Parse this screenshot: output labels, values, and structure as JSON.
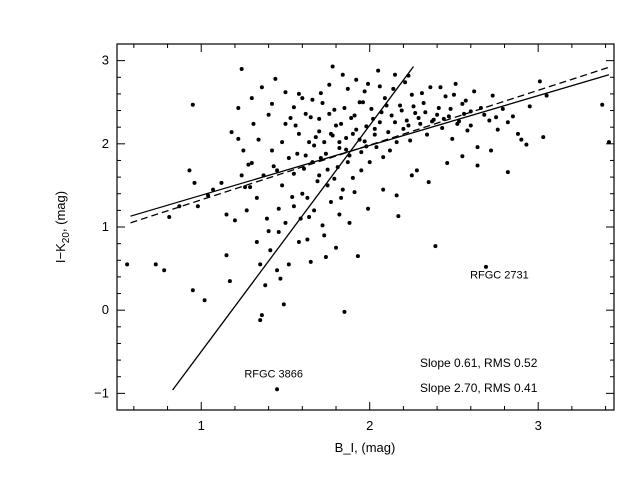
{
  "chart_data": {
    "type": "scatter",
    "title": "",
    "xlabel": "B_I, (mag)",
    "ylabel_main": "I−K",
    "ylabel_sub": "20",
    "ylabel_tail": ", (mag)",
    "xlim": [
      0.5,
      3.45
    ],
    "ylim": [
      -1.2,
      3.2
    ],
    "x_ticks": [
      1,
      2,
      3
    ],
    "y_ticks": [
      -1,
      0,
      1,
      2,
      3
    ],
    "grid": false,
    "fit_lines": [
      {
        "style": "solid",
        "x": [
          0.58,
          3.42
        ],
        "y": [
          1.13,
          2.83
        ]
      },
      {
        "style": "dashed",
        "x": [
          0.58,
          3.42
        ],
        "y": [
          1.05,
          2.92
        ]
      },
      {
        "style": "solid",
        "x": [
          0.83,
          2.26
        ],
        "y": [
          -0.96,
          2.93
        ]
      }
    ],
    "stats": [
      "Slope 0.61, RMS 0.52",
      "Slope 2.70, RMS 0.41"
    ],
    "annotations": [
      {
        "text": "RFGC 2731",
        "x": 2.77,
        "y": 0.38
      },
      {
        "text": "RFGC 3866",
        "x": 1.43,
        "y": -0.81
      }
    ],
    "points": [
      [
        0.56,
        0.55
      ],
      [
        0.73,
        0.55
      ],
      [
        0.78,
        0.48
      ],
      [
        0.81,
        1.12
      ],
      [
        0.87,
        1.25
      ],
      [
        0.93,
        1.68
      ],
      [
        0.95,
        2.47
      ],
      [
        0.96,
        1.53
      ],
      [
        0.95,
        0.24
      ],
      [
        0.98,
        1.25
      ],
      [
        1.02,
        0.12
      ],
      [
        1.04,
        1.38
      ],
      [
        1.07,
        1.45
      ],
      [
        1.12,
        1.53
      ],
      [
        1.15,
        1.15
      ],
      [
        1.17,
        0.35
      ],
      [
        1.2,
        1.08
      ],
      [
        1.18,
        2.14
      ],
      [
        1.22,
        2.43
      ],
      [
        1.24,
        2.9
      ],
      [
        1.26,
        1.48
      ],
      [
        1.27,
        1.2
      ],
      [
        1.3,
        1.77
      ],
      [
        1.31,
        2.24
      ],
      [
        1.33,
        0.82
      ],
      [
        1.35,
        -0.12
      ],
      [
        1.36,
        -0.06
      ],
      [
        1.38,
        0.3
      ],
      [
        1.39,
        1.1
      ],
      [
        1.4,
        0.95
      ],
      [
        1.42,
        2.48
      ],
      [
        1.43,
        1.73
      ],
      [
        1.45,
        0.48
      ],
      [
        1.46,
        0.94
      ],
      [
        1.48,
        2.02
      ],
      [
        1.49,
        0.07
      ],
      [
        1.5,
        2.24
      ],
      [
        1.52,
        0.55
      ],
      [
        1.54,
        1.36
      ],
      [
        1.55,
        1.64
      ],
      [
        1.56,
        2.22
      ],
      [
        1.58,
        2.6
      ],
      [
        1.6,
        1.4
      ],
      [
        1.62,
        1.86
      ],
      [
        1.63,
        0.85
      ],
      [
        1.64,
        1.12
      ],
      [
        1.66,
        2.53
      ],
      [
        1.67,
        1.98
      ],
      [
        1.69,
        1.55
      ],
      [
        1.7,
        2.3
      ],
      [
        1.71,
        1.83
      ],
      [
        1.73,
        2.02
      ],
      [
        1.74,
        0.64
      ],
      [
        1.75,
        1.69
      ],
      [
        1.77,
        2.12
      ],
      [
        1.78,
        2.93
      ],
      [
        1.79,
        2.41
      ],
      [
        1.81,
        1.72
      ],
      [
        1.82,
        1.95
      ],
      [
        1.83,
        2.24
      ],
      [
        1.84,
        1.45
      ],
      [
        1.86,
        2.07
      ],
      [
        1.87,
        2.66
      ],
      [
        1.88,
        1.86
      ],
      [
        1.89,
        2.31
      ],
      [
        1.9,
        1.59
      ],
      [
        1.92,
        2.17
      ],
      [
        1.93,
        0.65
      ],
      [
        1.94,
        2.5
      ],
      [
        1.95,
        1.9
      ],
      [
        1.97,
        2.03
      ],
      [
        1.98,
        2.21
      ],
      [
        1.99,
        2.72
      ],
      [
        2.0,
        1.78
      ],
      [
        2.01,
        2.42
      ],
      [
        2.03,
        2.11
      ],
      [
        2.04,
        1.96
      ],
      [
        2.05,
        2.88
      ],
      [
        2.06,
        2.26
      ],
      [
        2.08,
        1.84
      ],
      [
        2.09,
        2.55
      ],
      [
        2.11,
        2.14
      ],
      [
        2.12,
        1.92
      ],
      [
        2.13,
        2.34
      ],
      [
        2.14,
        2.66
      ],
      [
        2.16,
        2.02
      ],
      [
        2.17,
        1.13
      ],
      [
        2.18,
        2.46
      ],
      [
        2.2,
        2.18
      ],
      [
        2.21,
        2.74
      ],
      [
        2.22,
        2.28
      ],
      [
        2.24,
        2.04
      ],
      [
        2.25,
        2.59
      ],
      [
        2.27,
        2.37
      ],
      [
        2.28,
        1.68
      ],
      [
        2.3,
        2.24
      ],
      [
        2.32,
        2.49
      ],
      [
        2.34,
        2.11
      ],
      [
        2.36,
        2.68
      ],
      [
        2.38,
        2.29
      ],
      [
        2.39,
        0.77
      ],
      [
        2.41,
        2.43
      ],
      [
        2.43,
        2.19
      ],
      [
        2.45,
        2.57
      ],
      [
        2.47,
        2.33
      ],
      [
        2.49,
        2.06
      ],
      [
        2.51,
        2.72
      ],
      [
        2.53,
        2.27
      ],
      [
        2.55,
        2.48
      ],
      [
        2.58,
        2.16
      ],
      [
        2.6,
        2.39
      ],
      [
        2.62,
        2.63
      ],
      [
        2.64,
        1.96
      ],
      [
        2.66,
        2.43
      ],
      [
        2.69,
        0.52
      ],
      [
        2.71,
        2.28
      ],
      [
        2.73,
        2.58
      ],
      [
        2.76,
        2.17
      ],
      [
        2.79,
        2.42
      ],
      [
        2.82,
        1.66
      ],
      [
        2.85,
        2.33
      ],
      [
        2.9,
        2.05
      ],
      [
        2.95,
        2.45
      ],
      [
        3.01,
        2.75
      ],
      [
        3.03,
        2.08
      ],
      [
        3.05,
        2.58
      ],
      [
        3.38,
        2.47
      ],
      [
        3.42,
        2.02
      ],
      [
        1.62,
        2.36
      ],
      [
        1.68,
        2.08
      ],
      [
        1.72,
        2.49
      ],
      [
        1.76,
        2.36
      ],
      [
        1.8,
        2.22
      ],
      [
        1.85,
        2.43
      ],
      [
        1.91,
        2.34
      ],
      [
        1.96,
        2.5
      ],
      [
        2.02,
        2.3
      ],
      [
        2.07,
        2.38
      ],
      [
        2.1,
        2.46
      ],
      [
        2.15,
        2.26
      ],
      [
        2.19,
        2.4
      ],
      [
        2.23,
        2.22
      ],
      [
        2.26,
        2.45
      ],
      [
        2.29,
        2.31
      ],
      [
        2.33,
        2.38
      ],
      [
        2.37,
        2.27
      ],
      [
        2.4,
        2.35
      ],
      [
        2.44,
        2.3
      ],
      [
        2.48,
        2.42
      ],
      [
        2.52,
        2.24
      ],
      [
        2.56,
        2.36
      ],
      [
        2.6,
        2.22
      ],
      [
        1.64,
        2.02
      ],
      [
        1.7,
        2.15
      ],
      [
        1.74,
        1.88
      ],
      [
        1.78,
        2.1
      ],
      [
        1.82,
        2.02
      ],
      [
        1.86,
        1.93
      ],
      [
        1.9,
        2.12
      ],
      [
        1.94,
        2.05
      ],
      [
        1.98,
        1.97
      ],
      [
        2.03,
        2.18
      ],
      [
        1.57,
        1.88
      ],
      [
        1.61,
        1.7
      ],
      [
        1.66,
        1.78
      ],
      [
        1.7,
        1.62
      ],
      [
        1.75,
        1.5
      ],
      [
        1.79,
        1.58
      ],
      [
        1.83,
        1.35
      ],
      [
        1.87,
        1.78
      ],
      [
        1.91,
        1.42
      ],
      [
        1.95,
        1.68
      ],
      [
        1.48,
        1.5
      ],
      [
        1.52,
        1.83
      ],
      [
        1.45,
        1.68
      ],
      [
        1.42,
        1.92
      ],
      [
        1.37,
        1.62
      ],
      [
        1.34,
        2.05
      ],
      [
        1.28,
        1.75
      ],
      [
        1.25,
        1.92
      ],
      [
        1.22,
        2.06
      ],
      [
        1.53,
        2.31
      ],
      [
        1.58,
        2.12
      ],
      [
        1.55,
        2.44
      ],
      [
        1.6,
        2.55
      ],
      [
        1.65,
        2.32
      ],
      [
        1.71,
        2.61
      ],
      [
        1.76,
        2.71
      ],
      [
        1.84,
        2.83
      ],
      [
        1.92,
        2.77
      ],
      [
        1.97,
        2.63
      ],
      [
        2.06,
        2.69
      ],
      [
        2.15,
        2.83
      ],
      [
        2.23,
        2.82
      ],
      [
        2.31,
        2.61
      ],
      [
        2.42,
        2.68
      ],
      [
        2.5,
        2.59
      ],
      [
        2.57,
        2.52
      ],
      [
        2.68,
        2.35
      ],
      [
        2.75,
        2.32
      ],
      [
        2.82,
        2.26
      ],
      [
        2.88,
        2.12
      ],
      [
        2.93,
        1.99
      ],
      [
        1.46,
        1.22
      ],
      [
        1.5,
        1.05
      ],
      [
        1.55,
        1.25
      ],
      [
        1.59,
        1.1
      ],
      [
        1.63,
        1.35
      ],
      [
        1.67,
        1.2
      ],
      [
        1.72,
        1.02
      ],
      [
        1.77,
        1.3
      ],
      [
        1.82,
        1.15
      ],
      [
        1.88,
        1.05
      ],
      [
        1.99,
        1.22
      ],
      [
        2.08,
        1.45
      ],
      [
        2.16,
        1.38
      ],
      [
        2.25,
        1.62
      ],
      [
        2.35,
        1.54
      ],
      [
        2.46,
        1.77
      ],
      [
        2.55,
        1.85
      ],
      [
        2.64,
        1.74
      ],
      [
        2.72,
        1.92
      ],
      [
        1.35,
        0.55
      ],
      [
        1.41,
        0.72
      ],
      [
        1.47,
        0.38
      ],
      [
        1.58,
        0.82
      ],
      [
        1.65,
        0.58
      ],
      [
        1.73,
        0.9
      ],
      [
        1.8,
        0.75
      ],
      [
        1.33,
        1.35
      ],
      [
        1.29,
        1.48
      ],
      [
        1.24,
        1.62
      ],
      [
        1.3,
        2.55
      ],
      [
        1.36,
        2.68
      ],
      [
        1.44,
        2.78
      ],
      [
        1.5,
        2.62
      ],
      [
        1.4,
        2.35
      ],
      [
        1.15,
        0.66
      ],
      [
        1.85,
        -0.02
      ],
      [
        1.45,
        -0.95
      ]
    ]
  }
}
